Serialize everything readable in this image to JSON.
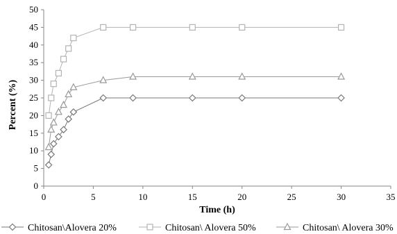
{
  "chart_data": {
    "type": "line",
    "xlabel": "Time (h)",
    "ylabel": "Percent (%)",
    "xlim": [
      0,
      35
    ],
    "ylim": [
      0,
      50
    ],
    "x_ticks": [
      0,
      5,
      10,
      15,
      20,
      25,
      30,
      35
    ],
    "y_ticks": [
      0,
      5,
      10,
      15,
      20,
      25,
      30,
      35,
      40,
      45,
      50
    ],
    "grid": false,
    "legend_position": "bottom",
    "series": [
      {
        "name": "Chitosan\\Alovera 20%",
        "marker": "diamond",
        "color": "#777777",
        "x": [
          0.5,
          0.75,
          1,
          1.5,
          2,
          2.5,
          3,
          6,
          9,
          15,
          20,
          30
        ],
        "y": [
          6,
          9,
          12,
          14,
          16,
          19,
          21,
          25,
          25,
          25,
          25,
          25
        ]
      },
      {
        "name": "Chitosan\\ Alovera 50%",
        "marker": "square",
        "color": "#b3b3b3",
        "x": [
          0.5,
          0.75,
          1,
          1.5,
          2,
          2.5,
          3,
          6,
          9,
          15,
          20,
          30
        ],
        "y": [
          20,
          25,
          29,
          32,
          36,
          39,
          42,
          45,
          45,
          45,
          45,
          45
        ]
      },
      {
        "name": "Chitosan\\ Alovera 30%",
        "marker": "triangle",
        "color": "#999999",
        "x": [
          0.5,
          0.75,
          1,
          1.5,
          2,
          2.5,
          3,
          6,
          9,
          15,
          20,
          30
        ],
        "y": [
          11,
          16,
          18,
          21,
          23,
          26,
          28,
          30,
          31,
          31,
          31,
          31
        ]
      }
    ]
  }
}
